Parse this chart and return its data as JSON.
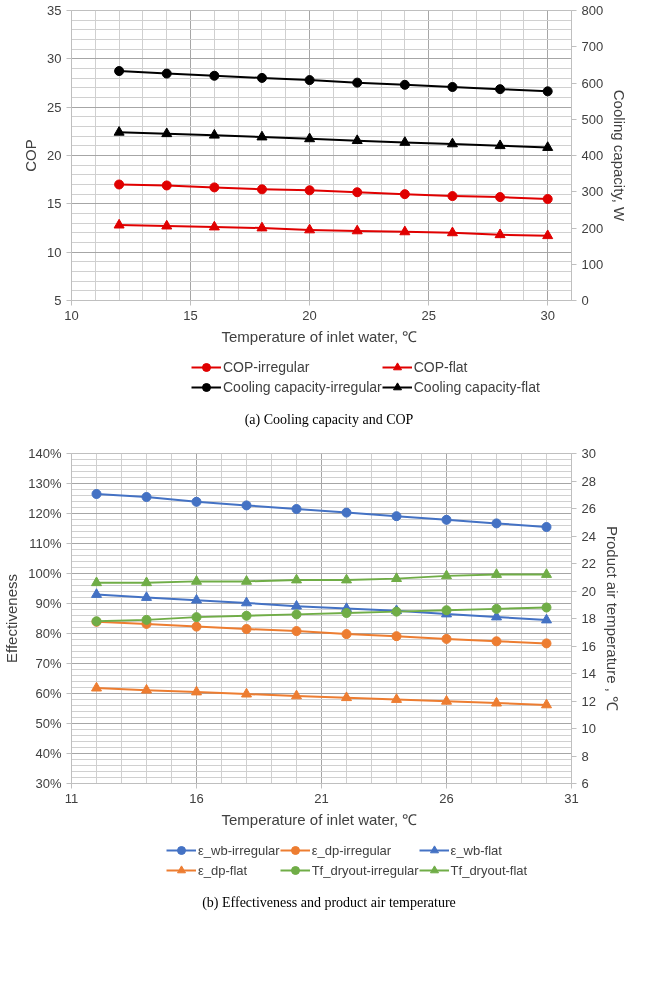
{
  "chart_data": [
    {
      "type": "line",
      "xlabel": "Temperature  of inlet water, ℃",
      "ylabel": "COP",
      "y2label": "Cooling capacity, W",
      "annotations": [
        "(a) Cooling capacity and COP"
      ],
      "x": [
        12,
        14,
        16,
        18,
        20,
        22,
        24,
        26,
        28,
        30
      ],
      "xlim": [
        10,
        31
      ],
      "xticks": [
        10,
        15,
        20,
        25,
        30
      ],
      "ylim": [
        5,
        35
      ],
      "yticks": [
        5,
        10,
        15,
        20,
        25,
        30,
        35
      ],
      "y2lim": [
        0,
        800
      ],
      "y2ticks": [
        0,
        100,
        200,
        300,
        400,
        500,
        600,
        700,
        800
      ],
      "grid": true,
      "legend": "bottom",
      "series": [
        {
          "name": "COP-irregular",
          "color": "#e00000",
          "marker": "circle",
          "values": [
            17.0,
            16.9,
            16.7,
            16.5,
            16.4,
            16.2,
            16.0,
            15.8,
            15.7,
            15.5
          ]
        },
        {
          "name": "COP-flat",
          "color": "#e00000",
          "marker": "triangle",
          "values": [
            12.8,
            12.7,
            12.6,
            12.5,
            12.3,
            12.2,
            12.1,
            12.0,
            11.8,
            11.7
          ]
        },
        {
          "name": "Cooling capacity-irregular",
          "color": "#000000",
          "marker": "circle",
          "axis": "y2",
          "values": [
            633,
            626,
            620,
            614,
            608,
            601,
            595,
            589,
            583,
            577
          ]
        },
        {
          "name": "Cooling capacity-flat",
          "color": "#000000",
          "marker": "triangle",
          "axis": "y2",
          "values": [
            464,
            460,
            456,
            451,
            446,
            441,
            436,
            432,
            427,
            422
          ]
        }
      ]
    },
    {
      "type": "line",
      "xlabel": "Temperature  of inlet water, ℃",
      "ylabel": "Effectiveness",
      "y2label": "Product air temperature , ℃",
      "annotations": [
        "(b) Effectiveness and product air temperature"
      ],
      "x": [
        12,
        14,
        16,
        18,
        20,
        22,
        24,
        26,
        28,
        30
      ],
      "xlim": [
        11,
        31
      ],
      "xticks": [
        11,
        16,
        21,
        26,
        31
      ],
      "ylim": [
        30,
        140
      ],
      "yticks": [
        {
          "value": 30,
          "label": "30%"
        },
        {
          "value": 40,
          "label": "40%"
        },
        {
          "value": 50,
          "label": "50%"
        },
        {
          "value": 60,
          "label": "60%"
        },
        {
          "value": 70,
          "label": "70%"
        },
        {
          "value": 80,
          "label": "80%"
        },
        {
          "value": 90,
          "label": "90%"
        },
        {
          "value": 100,
          "label": "100%"
        },
        {
          "value": 110,
          "label": "110%"
        },
        {
          "value": 120,
          "label": "120%"
        },
        {
          "value": 130,
          "label": "130%"
        },
        {
          "value": 140,
          "label": "140%"
        }
      ],
      "y2lim": [
        6,
        30
      ],
      "y2ticks": [
        6,
        8,
        10,
        12,
        14,
        16,
        18,
        20,
        22,
        24,
        26,
        28,
        30
      ],
      "grid": true,
      "legend": "bottom",
      "series": [
        {
          "name": "ε_wb-irregular",
          "color": "#4472c4",
          "marker": "circle",
          "values": [
            126.5,
            125.5,
            123.9,
            122.7,
            121.5,
            120.3,
            119.1,
            117.9,
            116.7,
            115.5
          ]
        },
        {
          "name": "ε_dp-irregular",
          "color": "#ed7d31",
          "marker": "circle",
          "values": [
            83.9,
            83.2,
            82.3,
            81.5,
            80.8,
            79.8,
            79.1,
            78.2,
            77.4,
            76.7
          ]
        },
        {
          "name": "ε_wb-flat",
          "color": "#4472c4",
          "marker": "triangle",
          "values": [
            93.0,
            92.0,
            91.1,
            90.2,
            89.1,
            88.3,
            87.6,
            86.5,
            85.5,
            84.5
          ]
        },
        {
          "name": "ε_dp-flat",
          "color": "#ed7d31",
          "marker": "triangle",
          "values": [
            61.8,
            61.1,
            60.5,
            59.8,
            59.2,
            58.6,
            58.0,
            57.4,
            56.8,
            56.2
          ]
        },
        {
          "name": "Tf_dryout-irregular",
          "color": "#70ad47",
          "marker": "circle",
          "axis": "y2",
          "values": [
            17.8,
            17.9,
            18.1,
            18.2,
            18.3,
            18.4,
            18.5,
            18.6,
            18.7,
            18.8
          ]
        },
        {
          "name": "Tf_dryout-flat",
          "color": "#70ad47",
          "marker": "triangle",
          "axis": "y2",
          "values": [
            20.6,
            20.6,
            20.7,
            20.7,
            20.8,
            20.8,
            20.9,
            21.1,
            21.2,
            21.2
          ]
        }
      ]
    }
  ]
}
